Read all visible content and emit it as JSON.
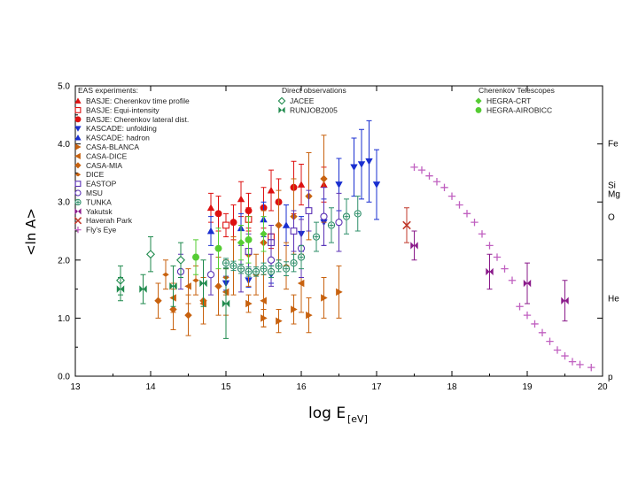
{
  "chart_data": {
    "type": "scatter",
    "title": "",
    "xlabel": "log E",
    "xlabel_sub": "[eV]",
    "ylabel": "<ln A>",
    "xlim": [
      13,
      20
    ],
    "ylim": [
      0,
      5
    ],
    "xticks": [
      "13",
      "14",
      "15",
      "16",
      "17",
      "18",
      "19",
      "20"
    ],
    "yticks": [
      "0.0",
      "1.0",
      "2.0",
      "3.0",
      "4.0",
      "5.0"
    ],
    "group_headers": {
      "eas": "EAS experiments:",
      "direct": "Direct observations",
      "cherenkov": "Cherenkov Telescopes"
    },
    "elements": [
      {
        "label": "Fe",
        "y": 4.02
      },
      {
        "label": "Si",
        "y": 3.3
      },
      {
        "label": "Mg",
        "y": 3.15
      },
      {
        "label": "O",
        "y": 2.75
      },
      {
        "label": "He",
        "y": 1.35
      },
      {
        "label": "p",
        "y": 0.0
      }
    ],
    "series": [
      {
        "name": "BASJE: Cherenkov time profile",
        "color": "#dd1111",
        "marker": "tri-up",
        "points": [
          {
            "x": 14.8,
            "y": 2.9,
            "e": 0.25
          },
          {
            "x": 15.2,
            "y": 3.05,
            "e": 0.3
          },
          {
            "x": 15.6,
            "y": 3.2,
            "e": 0.35
          },
          {
            "x": 16.0,
            "y": 3.3,
            "e": 0.35
          },
          {
            "x": 16.3,
            "y": 3.3,
            "e": 0.3
          }
        ]
      },
      {
        "name": "BASJE: Equi-intensity",
        "color": "#dd1111",
        "marker": "square-open",
        "points": [
          {
            "x": 15.0,
            "y": 2.6,
            "e": 0.2
          },
          {
            "x": 15.3,
            "y": 2.7,
            "e": 0.2
          },
          {
            "x": 15.6,
            "y": 2.4,
            "e": 0.2
          }
        ]
      },
      {
        "name": "BASJE: Cherenkov lateral dist.",
        "color": "#dd1111",
        "marker": "circle",
        "points": [
          {
            "x": 14.9,
            "y": 2.8,
            "e": 0.3
          },
          {
            "x": 15.1,
            "y": 2.65,
            "e": 0.3
          },
          {
            "x": 15.3,
            "y": 2.85,
            "e": 0.3
          },
          {
            "x": 15.5,
            "y": 2.9,
            "e": 0.35
          },
          {
            "x": 15.7,
            "y": 3.0,
            "e": 0.4
          },
          {
            "x": 15.9,
            "y": 3.25,
            "e": 0.45
          }
        ]
      },
      {
        "name": "KASCADE: unfolding",
        "color": "#1a2fd0",
        "marker": "tri-down",
        "points": [
          {
            "x": 15.0,
            "y": 1.6,
            "e": 0.12
          },
          {
            "x": 15.3,
            "y": 1.65,
            "e": 0.12
          },
          {
            "x": 15.6,
            "y": 1.75,
            "e": 0.15
          },
          {
            "x": 16.0,
            "y": 2.45,
            "e": 0.3
          },
          {
            "x": 16.3,
            "y": 2.65,
            "e": 0.4
          },
          {
            "x": 16.5,
            "y": 3.3,
            "e": 0.45
          },
          {
            "x": 16.7,
            "y": 3.6,
            "e": 0.5
          },
          {
            "x": 16.8,
            "y": 3.65,
            "e": 0.6
          },
          {
            "x": 16.9,
            "y": 3.7,
            "e": 0.7
          },
          {
            "x": 17.0,
            "y": 3.3,
            "e": 0.6
          }
        ]
      },
      {
        "name": "KASCADE: hadron",
        "color": "#1a2fd0",
        "marker": "tri-up",
        "points": [
          {
            "x": 14.8,
            "y": 2.5,
            "e": 0.25
          },
          {
            "x": 15.2,
            "y": 2.55,
            "e": 0.25
          },
          {
            "x": 15.5,
            "y": 2.7,
            "e": 0.3
          },
          {
            "x": 15.8,
            "y": 2.6,
            "e": 0.35
          }
        ]
      },
      {
        "name": "CASA-BLANCA",
        "color": "#c8620f",
        "marker": "tri-right",
        "points": [
          {
            "x": 15.3,
            "y": 1.25,
            "e": 0.15
          },
          {
            "x": 15.5,
            "y": 1.0,
            "e": 0.15
          },
          {
            "x": 15.7,
            "y": 0.95,
            "e": 0.2
          },
          {
            "x": 15.9,
            "y": 1.15,
            "e": 0.25
          },
          {
            "x": 16.1,
            "y": 1.05,
            "e": 0.3
          },
          {
            "x": 16.3,
            "y": 1.35,
            "e": 0.35
          },
          {
            "x": 16.5,
            "y": 1.45,
            "e": 0.45
          }
        ]
      },
      {
        "name": "CASA-DICE",
        "color": "#c8620f",
        "marker": "tri-left",
        "points": [
          {
            "x": 14.3,
            "y": 1.35,
            "e": 0.25
          },
          {
            "x": 14.5,
            "y": 1.55,
            "e": 0.3
          },
          {
            "x": 14.7,
            "y": 1.25,
            "e": 0.35
          },
          {
            "x": 15.0,
            "y": 1.45,
            "e": 0.4
          },
          {
            "x": 15.5,
            "y": 1.3,
            "e": 0.45
          },
          {
            "x": 16.0,
            "y": 1.6,
            "e": 0.5
          }
        ]
      },
      {
        "name": "CASA-MIA",
        "color": "#c8620f",
        "marker": "diamond",
        "points": [
          {
            "x": 14.1,
            "y": 1.3,
            "e": 0.3
          },
          {
            "x": 14.3,
            "y": 1.15,
            "e": 0.35
          },
          {
            "x": 14.5,
            "y": 1.05,
            "e": 0.35
          },
          {
            "x": 14.7,
            "y": 1.3,
            "e": 0.4
          },
          {
            "x": 14.9,
            "y": 1.55,
            "e": 0.5
          },
          {
            "x": 15.1,
            "y": 1.9,
            "e": 0.5
          },
          {
            "x": 15.3,
            "y": 2.1,
            "e": 0.55
          },
          {
            "x": 15.5,
            "y": 2.3,
            "e": 0.55
          },
          {
            "x": 15.7,
            "y": 2.6,
            "e": 0.6
          },
          {
            "x": 15.9,
            "y": 2.75,
            "e": 0.65
          },
          {
            "x": 16.1,
            "y": 3.1,
            "e": 0.75
          },
          {
            "x": 16.3,
            "y": 3.4,
            "e": 0.75
          }
        ]
      },
      {
        "name": "DICE",
        "color": "#c8620f",
        "marker": "diamond-small",
        "points": [
          {
            "x": 14.2,
            "y": 1.75,
            "e": 0.25
          },
          {
            "x": 14.6,
            "y": 1.65,
            "e": 0.25
          },
          {
            "x": 15.0,
            "y": 1.7,
            "e": 0.3
          },
          {
            "x": 15.4,
            "y": 1.75,
            "e": 0.35
          },
          {
            "x": 15.8,
            "y": 1.9,
            "e": 0.4
          }
        ]
      },
      {
        "name": "EASTOP",
        "color": "#5b31b5",
        "marker": "square-open",
        "points": [
          {
            "x": 15.3,
            "y": 2.15,
            "e": 0.3
          },
          {
            "x": 15.6,
            "y": 2.3,
            "e": 0.3
          },
          {
            "x": 15.9,
            "y": 2.5,
            "e": 0.35
          },
          {
            "x": 16.1,
            "y": 2.85,
            "e": 0.35
          }
        ]
      },
      {
        "name": "MSU",
        "color": "#5b31b5",
        "marker": "circle-open",
        "points": [
          {
            "x": 14.4,
            "y": 1.8,
            "e": 0.3
          },
          {
            "x": 14.8,
            "y": 1.75,
            "e": 0.35
          },
          {
            "x": 15.2,
            "y": 1.85,
            "e": 0.4
          },
          {
            "x": 15.6,
            "y": 2.0,
            "e": 0.45
          },
          {
            "x": 16.0,
            "y": 2.2,
            "e": 0.5
          },
          {
            "x": 16.3,
            "y": 2.75,
            "e": 0.5
          },
          {
            "x": 16.5,
            "y": 2.65,
            "e": 0.5
          }
        ]
      },
      {
        "name": "TUNKA",
        "color": "#2f8f6a",
        "marker": "circle-cross",
        "points": [
          {
            "x": 15.0,
            "y": 1.95,
            "e": 0.08
          },
          {
            "x": 15.1,
            "y": 1.9,
            "e": 0.08
          },
          {
            "x": 15.2,
            "y": 1.85,
            "e": 0.08
          },
          {
            "x": 15.3,
            "y": 1.8,
            "e": 0.08
          },
          {
            "x": 15.4,
            "y": 1.8,
            "e": 0.08
          },
          {
            "x": 15.5,
            "y": 1.85,
            "e": 0.1
          },
          {
            "x": 15.6,
            "y": 1.8,
            "e": 0.1
          },
          {
            "x": 15.7,
            "y": 1.9,
            "e": 0.1
          },
          {
            "x": 15.8,
            "y": 1.85,
            "e": 0.12
          },
          {
            "x": 15.9,
            "y": 1.95,
            "e": 0.15
          },
          {
            "x": 16.0,
            "y": 2.05,
            "e": 0.2
          },
          {
            "x": 16.2,
            "y": 2.4,
            "e": 0.25
          },
          {
            "x": 16.4,
            "y": 2.6,
            "e": 0.3
          },
          {
            "x": 16.6,
            "y": 2.75,
            "e": 0.3
          },
          {
            "x": 16.75,
            "y": 2.8,
            "e": 0.3
          }
        ]
      },
      {
        "name": "Yakutsk",
        "color": "#8a1a8a",
        "marker": "bowtie",
        "points": [
          {
            "x": 17.5,
            "y": 2.25,
            "e": 0.25
          },
          {
            "x": 18.5,
            "y": 1.8,
            "e": 0.3
          },
          {
            "x": 19.0,
            "y": 1.6,
            "e": 0.35
          },
          {
            "x": 19.5,
            "y": 1.3,
            "e": 0.35
          }
        ]
      },
      {
        "name": "Haverah Park",
        "color": "#c0392b",
        "marker": "x",
        "points": [
          {
            "x": 17.4,
            "y": 2.6,
            "e": 0.3
          }
        ]
      },
      {
        "name": "Fly's Eye",
        "color": "#c060c0",
        "marker": "plus",
        "points": [
          {
            "x": 17.5,
            "y": 3.6,
            "e": 0
          },
          {
            "x": 17.6,
            "y": 3.55,
            "e": 0
          },
          {
            "x": 17.7,
            "y": 3.45,
            "e": 0
          },
          {
            "x": 17.8,
            "y": 3.35,
            "e": 0
          },
          {
            "x": 17.9,
            "y": 3.25,
            "e": 0
          },
          {
            "x": 18.0,
            "y": 3.1,
            "e": 0
          },
          {
            "x": 18.1,
            "y": 2.95,
            "e": 0
          },
          {
            "x": 18.2,
            "y": 2.8,
            "e": 0
          },
          {
            "x": 18.3,
            "y": 2.65,
            "e": 0
          },
          {
            "x": 18.4,
            "y": 2.45,
            "e": 0
          },
          {
            "x": 18.5,
            "y": 2.25,
            "e": 0
          },
          {
            "x": 18.6,
            "y": 2.05,
            "e": 0
          },
          {
            "x": 18.7,
            "y": 1.85,
            "e": 0
          },
          {
            "x": 18.8,
            "y": 1.65,
            "e": 0
          },
          {
            "x": 18.9,
            "y": 1.2,
            "e": 0
          },
          {
            "x": 19.0,
            "y": 1.05,
            "e": 0
          },
          {
            "x": 19.1,
            "y": 0.9,
            "e": 0
          },
          {
            "x": 19.2,
            "y": 0.75,
            "e": 0
          },
          {
            "x": 19.3,
            "y": 0.6,
            "e": 0
          },
          {
            "x": 19.4,
            "y": 0.45,
            "e": 0
          },
          {
            "x": 19.5,
            "y": 0.35,
            "e": 0
          },
          {
            "x": 19.6,
            "y": 0.25,
            "e": 0
          },
          {
            "x": 19.7,
            "y": 0.2,
            "e": 0
          },
          {
            "x": 19.85,
            "y": 0.15,
            "e": 0
          }
        ]
      },
      {
        "name": "JACEE",
        "color": "#1f8a4d",
        "marker": "diamond-open",
        "points": [
          {
            "x": 13.6,
            "y": 1.65,
            "e": 0.25
          },
          {
            "x": 14.0,
            "y": 2.1,
            "e": 0.3
          },
          {
            "x": 14.4,
            "y": 2.0,
            "e": 0.3
          }
        ]
      },
      {
        "name": "RUNJOB2005",
        "color": "#1f8a4d",
        "marker": "bowtie",
        "points": [
          {
            "x": 13.6,
            "y": 1.5,
            "e": 0.2
          },
          {
            "x": 13.9,
            "y": 1.5,
            "e": 0.25
          },
          {
            "x": 14.3,
            "y": 1.55,
            "e": 0.35
          },
          {
            "x": 14.7,
            "y": 1.6,
            "e": 0.4
          },
          {
            "x": 15.0,
            "y": 1.25,
            "e": 0.6
          }
        ]
      },
      {
        "name": "HEGRA-CRT",
        "color": "#55cc33",
        "marker": "diamond",
        "points": [
          {
            "x": 15.2,
            "y": 2.3,
            "e": 0.3
          },
          {
            "x": 15.5,
            "y": 2.45,
            "e": 0.3
          }
        ]
      },
      {
        "name": "HEGRA-AIROBICC",
        "color": "#55cc33",
        "marker": "circle",
        "points": [
          {
            "x": 14.6,
            "y": 2.05,
            "e": 0.3
          },
          {
            "x": 14.9,
            "y": 2.2,
            "e": 0.35
          },
          {
            "x": 15.3,
            "y": 2.35,
            "e": 0.4
          }
        ]
      }
    ],
    "legend_groups": {
      "eas": [
        "BASJE: Cherenkov time profile",
        "BASJE: Equi-intensity",
        "BASJE: Cherenkov lateral dist.",
        "KASCADE: unfolding",
        "KASCADE: hadron",
        "CASA-BLANCA",
        "CASA-DICE",
        "CASA-MIA",
        "DICE",
        "EASTOP",
        "MSU",
        "TUNKA",
        "Yakutsk",
        "Haverah Park",
        "Fly's Eye"
      ],
      "direct": [
        "JACEE",
        "RUNJOB2005"
      ],
      "cherenkov": [
        "HEGRA-CRT",
        "HEGRA-AIROBICC"
      ]
    }
  }
}
